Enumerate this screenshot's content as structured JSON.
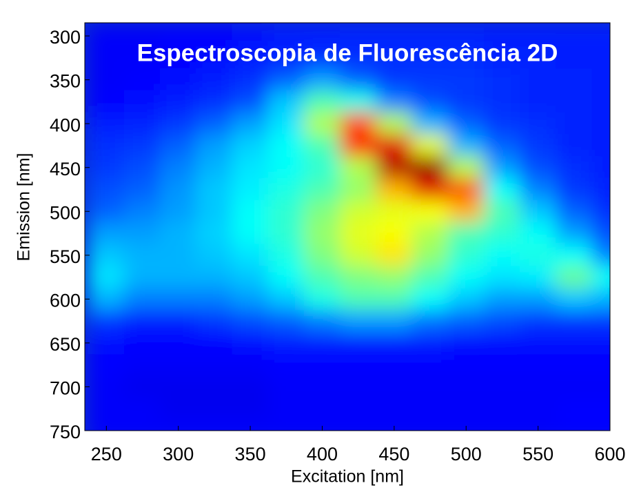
{
  "chart_data": {
    "type": "heatmap",
    "title": "Espectroscopia de Fluorescência 2D",
    "x_label": "Excitation [nm]",
    "y_label": "Emission [nm]",
    "colormap": "jet",
    "y_reversed": true,
    "xlim": [
      235,
      600
    ],
    "ylim": [
      285,
      750
    ],
    "xticks": [
      250,
      300,
      350,
      400,
      450,
      500,
      550,
      600
    ],
    "yticks": [
      300,
      350,
      400,
      450,
      500,
      550,
      600,
      650,
      700,
      750
    ],
    "x": [
      250,
      275,
      300,
      325,
      350,
      375,
      400,
      425,
      450,
      475,
      500,
      525,
      550,
      575,
      600
    ],
    "y": [
      300,
      325,
      350,
      375,
      400,
      425,
      450,
      475,
      500,
      525,
      550,
      575,
      600,
      625,
      650,
      675,
      700,
      725,
      750
    ],
    "z": [
      [
        0.12,
        0.12,
        0.13,
        0.13,
        0.14,
        0.15,
        0.15,
        0.16,
        0.16,
        0.16,
        0.16,
        0.15,
        0.15,
        0.15,
        0.15
      ],
      [
        0.12,
        0.12,
        0.13,
        0.14,
        0.15,
        0.16,
        0.17,
        0.17,
        0.17,
        0.17,
        0.17,
        0.16,
        0.16,
        0.15,
        0.15
      ],
      [
        0.12,
        0.13,
        0.14,
        0.15,
        0.17,
        0.22,
        0.28,
        0.22,
        0.18,
        0.18,
        0.18,
        0.17,
        0.16,
        0.16,
        0.15
      ],
      [
        0.13,
        0.14,
        0.15,
        0.17,
        0.2,
        0.32,
        0.45,
        0.4,
        0.25,
        0.2,
        0.18,
        0.17,
        0.16,
        0.16,
        0.15
      ],
      [
        0.15,
        0.16,
        0.18,
        0.22,
        0.28,
        0.35,
        0.55,
        0.8,
        0.55,
        0.3,
        0.22,
        0.18,
        0.17,
        0.16,
        0.15
      ],
      [
        0.17,
        0.18,
        0.22,
        0.28,
        0.33,
        0.38,
        0.45,
        0.85,
        0.9,
        0.6,
        0.3,
        0.22,
        0.18,
        0.16,
        0.15
      ],
      [
        0.18,
        0.2,
        0.25,
        0.3,
        0.35,
        0.38,
        0.42,
        0.55,
        0.95,
        0.98,
        0.55,
        0.28,
        0.2,
        0.17,
        0.15
      ],
      [
        0.2,
        0.22,
        0.27,
        0.32,
        0.36,
        0.4,
        0.45,
        0.52,
        0.7,
        0.9,
        0.8,
        0.38,
        0.25,
        0.18,
        0.16
      ],
      [
        0.22,
        0.25,
        0.28,
        0.32,
        0.38,
        0.42,
        0.5,
        0.58,
        0.6,
        0.62,
        0.7,
        0.45,
        0.32,
        0.22,
        0.17
      ],
      [
        0.28,
        0.28,
        0.3,
        0.33,
        0.38,
        0.42,
        0.52,
        0.6,
        0.62,
        0.55,
        0.45,
        0.42,
        0.38,
        0.28,
        0.2
      ],
      [
        0.32,
        0.3,
        0.3,
        0.32,
        0.35,
        0.4,
        0.5,
        0.58,
        0.65,
        0.52,
        0.42,
        0.38,
        0.4,
        0.38,
        0.25
      ],
      [
        0.35,
        0.3,
        0.3,
        0.3,
        0.32,
        0.38,
        0.45,
        0.5,
        0.52,
        0.45,
        0.38,
        0.35,
        0.36,
        0.48,
        0.38
      ],
      [
        0.3,
        0.25,
        0.25,
        0.25,
        0.28,
        0.32,
        0.4,
        0.45,
        0.45,
        0.38,
        0.32,
        0.28,
        0.28,
        0.32,
        0.3
      ],
      [
        0.18,
        0.16,
        0.16,
        0.18,
        0.2,
        0.22,
        0.25,
        0.28,
        0.28,
        0.24,
        0.22,
        0.2,
        0.18,
        0.18,
        0.18
      ],
      [
        0.14,
        0.13,
        0.13,
        0.13,
        0.14,
        0.15,
        0.15,
        0.15,
        0.15,
        0.15,
        0.14,
        0.14,
        0.14,
        0.14,
        0.14
      ],
      [
        0.13,
        0.12,
        0.12,
        0.12,
        0.12,
        0.13,
        0.13,
        0.13,
        0.13,
        0.13,
        0.13,
        0.13,
        0.13,
        0.13,
        0.13
      ],
      [
        0.12,
        0.11,
        0.11,
        0.11,
        0.11,
        0.12,
        0.12,
        0.12,
        0.12,
        0.12,
        0.12,
        0.12,
        0.12,
        0.12,
        0.12
      ],
      [
        0.12,
        0.12,
        0.11,
        0.11,
        0.11,
        0.12,
        0.12,
        0.12,
        0.12,
        0.12,
        0.12,
        0.12,
        0.12,
        0.13,
        0.13
      ],
      [
        0.12,
        0.12,
        0.12,
        0.12,
        0.12,
        0.12,
        0.12,
        0.12,
        0.12,
        0.12,
        0.12,
        0.12,
        0.12,
        0.13,
        0.13
      ]
    ]
  }
}
